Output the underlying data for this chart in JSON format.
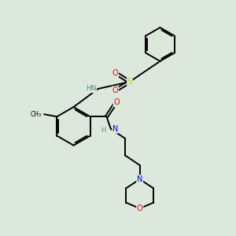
{
  "background_color": "#dce8dc",
  "atom_colors": {
    "C": "#000000",
    "H": "#5a8a8a",
    "N": "#0000ee",
    "O": "#ee0000",
    "S": "#cccc00"
  },
  "bond_color": "#000000",
  "bond_width": 1.4,
  "figsize": [
    3.0,
    3.0
  ],
  "dpi": 100
}
